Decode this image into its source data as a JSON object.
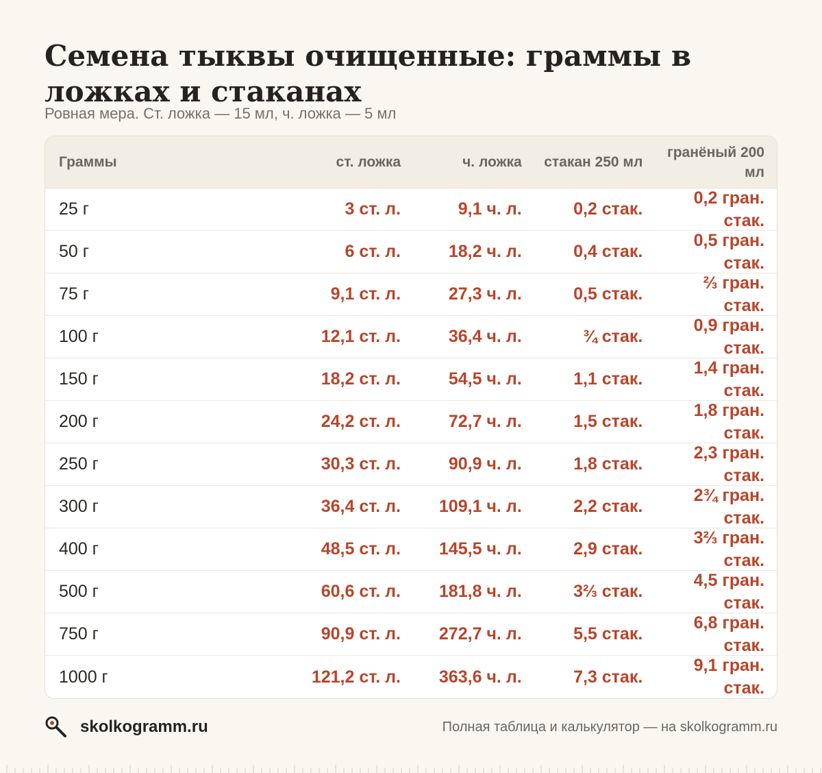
{
  "header": {
    "title": "Семена тыквы очищенные: граммы в ложках и стаканах",
    "subtitle": "Ровная мера. Ст. ложка — 15 мл, ч. ложка — 5 мл"
  },
  "table": {
    "columns": [
      "Граммы",
      "ст. ложка",
      "ч. ложка",
      "стакан 250 мл",
      "гранёный 200 мл"
    ],
    "rows": [
      [
        "25 г",
        "3 ст. л.",
        "9,1 ч. л.",
        "0,2 стак.",
        "0,2 гран. стак."
      ],
      [
        "50 г",
        "6 ст. л.",
        "18,2 ч. л.",
        "0,4 стак.",
        "0,5 гран. стак."
      ],
      [
        "75 г",
        "9,1 ст. л.",
        "27,3 ч. л.",
        "0,5 стак.",
        "⅔ гран. стак."
      ],
      [
        "100 г",
        "12,1 ст. л.",
        "36,4 ч. л.",
        "¾ стак.",
        "0,9 гран. стак."
      ],
      [
        "150 г",
        "18,2 ст. л.",
        "54,5 ч. л.",
        "1,1 стак.",
        "1,4 гран. стак."
      ],
      [
        "200 г",
        "24,2 ст. л.",
        "72,7 ч. л.",
        "1,5 стак.",
        "1,8 гран. стак."
      ],
      [
        "250 г",
        "30,3 ст. л.",
        "90,9 ч. л.",
        "1,8 стак.",
        "2,3 гран. стак."
      ],
      [
        "300 г",
        "36,4 ст. л.",
        "109,1 ч. л.",
        "2,2 стак.",
        "2¾ гран. стак."
      ],
      [
        "400 г",
        "48,5 ст. л.",
        "145,5 ч. л.",
        "2,9 стак.",
        "3⅔ гран. стак."
      ],
      [
        "500 г",
        "60,6 ст. л.",
        "181,8 ч. л.",
        "3⅔ стак.",
        "4,5 гран. стак."
      ],
      [
        "750 г",
        "90,9 ст. л.",
        "272,7 ч. л.",
        "5,5 стак.",
        "6,8 гран. стак."
      ],
      [
        "1000 г",
        "121,2 ст. л.",
        "363,6 ч. л.",
        "7,3 стак.",
        "9,1 гран. стак."
      ]
    ]
  },
  "footer": {
    "brand": "skolkogramm.ru",
    "note": "Полная таблица и калькулятор — на skolkogramm.ru",
    "logo_icon": "search-icon"
  },
  "colors": {
    "accent": "#b8452a",
    "background": "#faf7f0",
    "header_bg": "#f2eee5"
  }
}
